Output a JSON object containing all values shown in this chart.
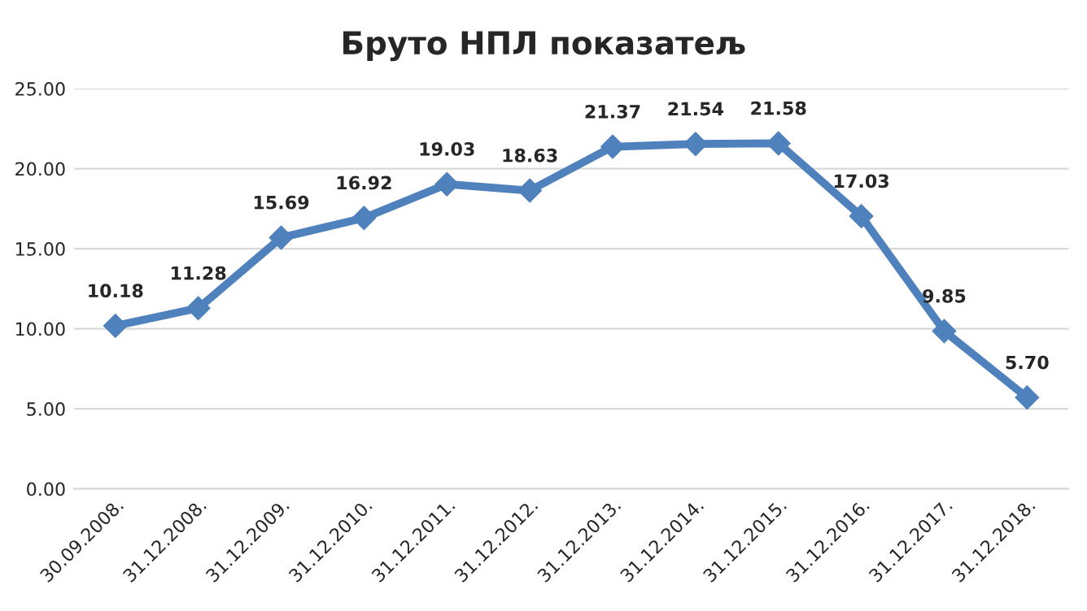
{
  "chart_data": {
    "type": "line",
    "title": "Бруто НПЛ показатељ",
    "categories": [
      "30.09.2008.",
      "31.12.2008.",
      "31.12.2009.",
      "31.12.2010.",
      "31.12.2011.",
      "31.12.2012.",
      "31.12.2013.",
      "31.12.2014.",
      "31.12.2015.",
      "31.12.2016.",
      "31.12.2017.",
      "31.12.2018."
    ],
    "series": [
      {
        "color": "#4f81bd",
        "values": [
          10.18,
          11.28,
          15.69,
          16.92,
          19.03,
          18.63,
          21.37,
          21.54,
          21.58,
          17.03,
          9.85,
          5.7
        ],
        "value_labels": [
          "10.18",
          "11.28",
          "15.69",
          "16.92",
          "19.03",
          "18.63",
          "21.37",
          "21.54",
          "21.58",
          "17.03",
          "9.85",
          "5.70"
        ]
      }
    ],
    "ylim": [
      0,
      25
    ],
    "yticks": [
      {
        "value": 0,
        "label": "0.00"
      },
      {
        "value": 5,
        "label": "5.00"
      },
      {
        "value": 10,
        "label": "10.00"
      },
      {
        "value": 15,
        "label": "15.00"
      },
      {
        "value": 20,
        "label": "20.00"
      },
      {
        "value": 25,
        "label": "25.00"
      }
    ],
    "grid": "y",
    "marker": "diamond",
    "line_style": "solid"
  }
}
